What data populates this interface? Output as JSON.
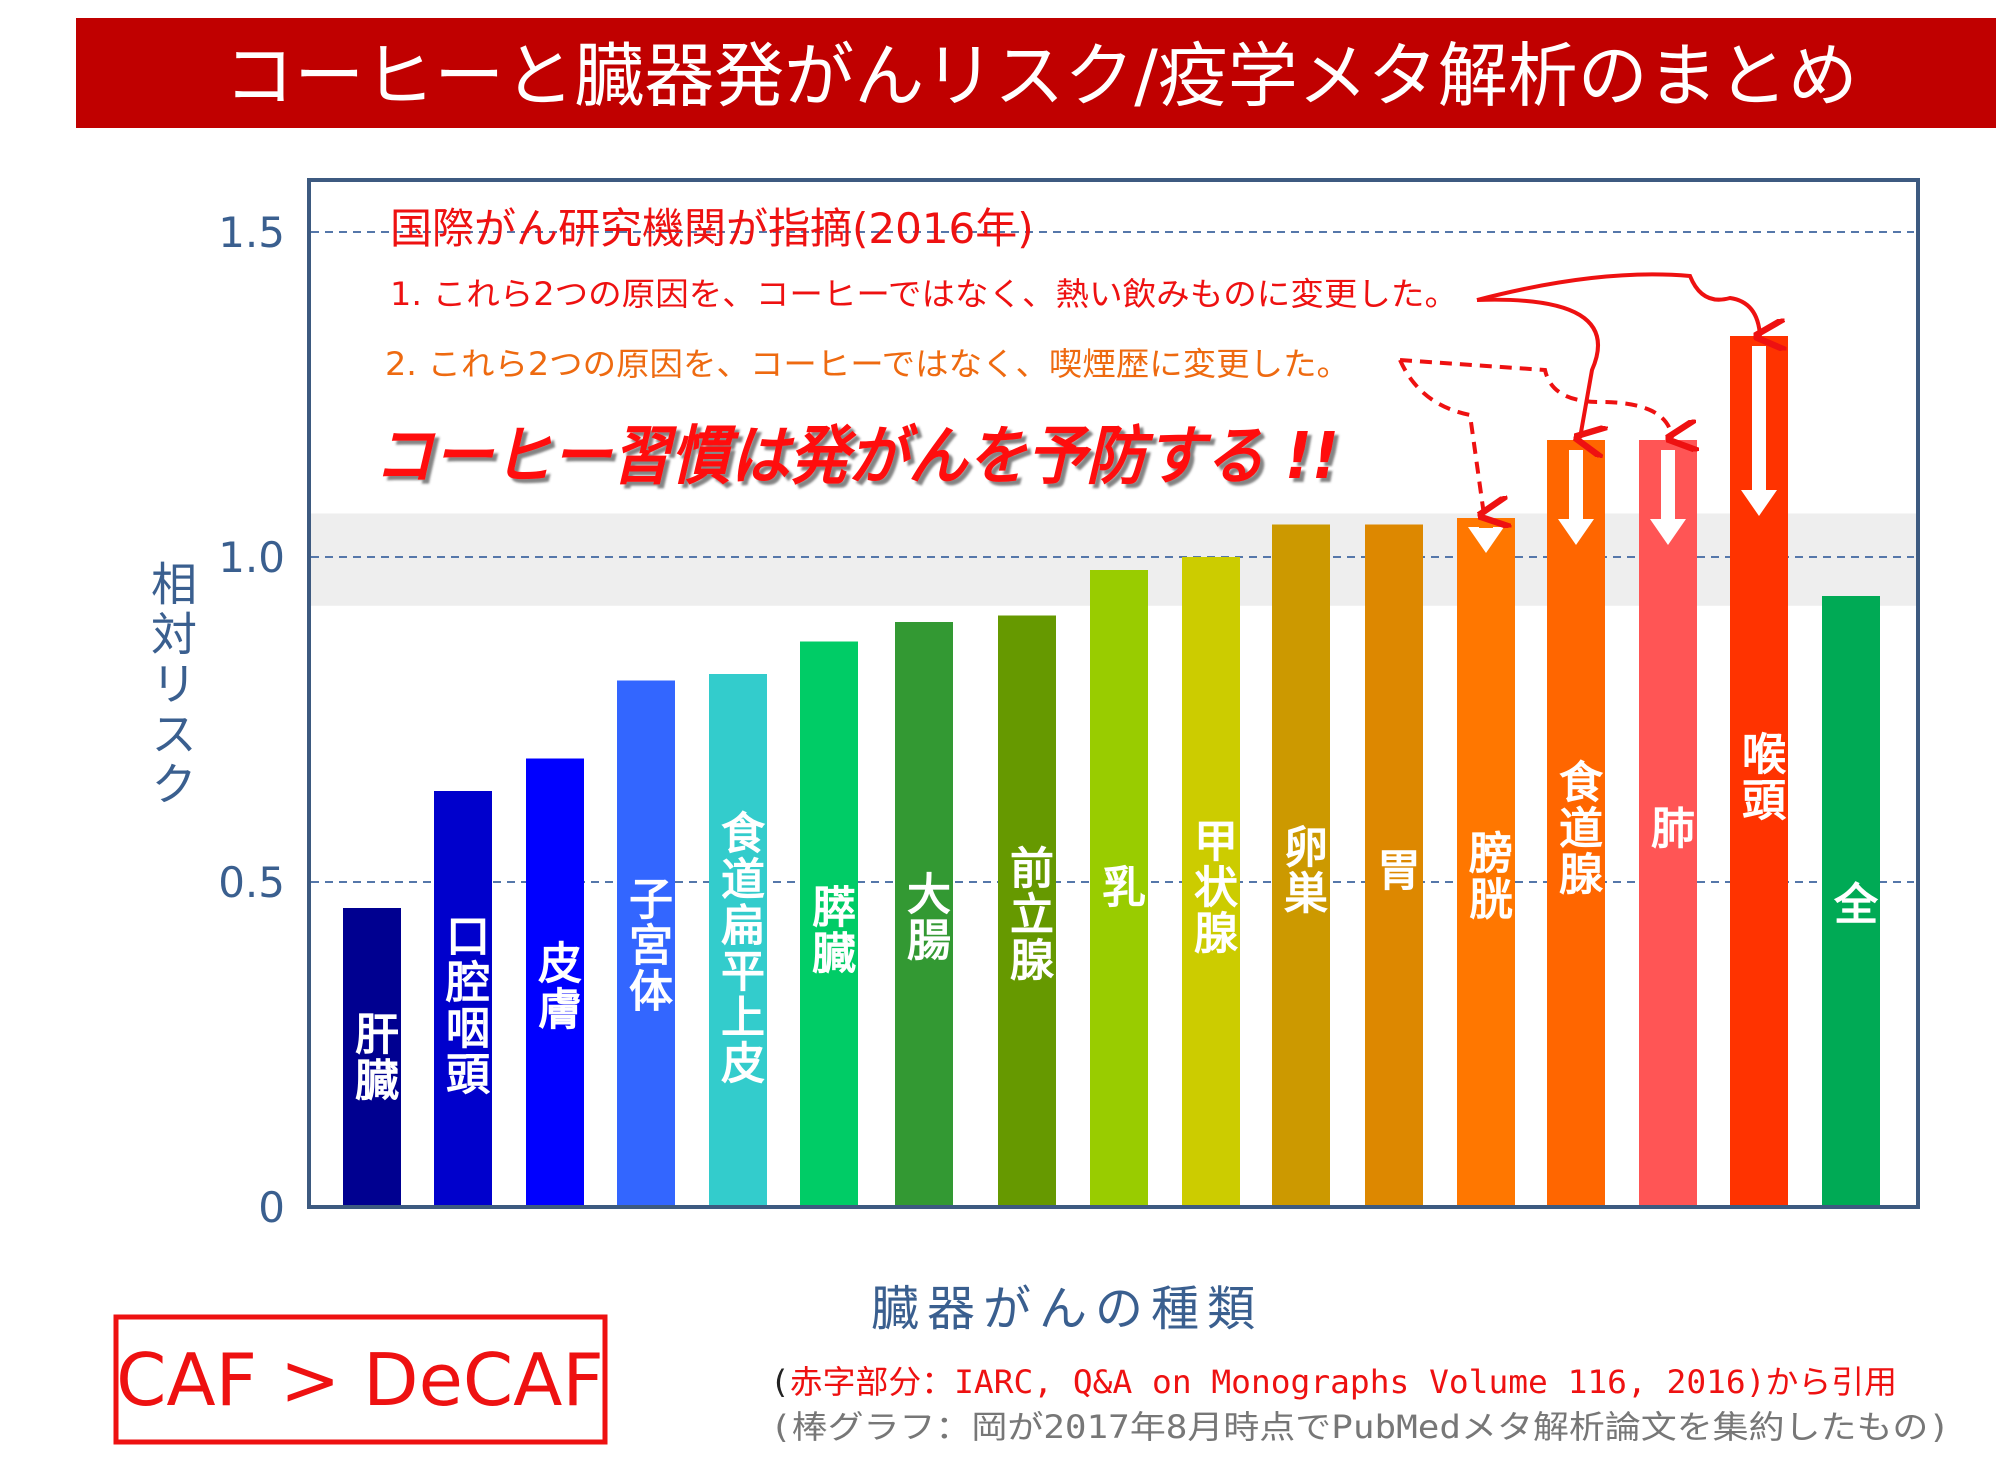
{
  "title": "コーヒーと臓器発がんリスク/疫学メタ解析のまとめ",
  "annotations": {
    "header": "国際がん研究機関が指摘(2016年)",
    "note1": "1. これら2つの原因を、コーヒーではなく、熱い飲みものに変更した。",
    "note2": "2. これら2つの原因を、コーヒーではなく、喫煙歴に変更した。",
    "headline": "コーヒー習慣は発がんを予防する !!"
  },
  "caf_box": "CAF > DeCAF",
  "citation": {
    "line1_open": "(",
    "line1_red": "赤字部分：IARC, Q&A on Monographs Volume 116, 2016)から引用",
    "line2": "(棒グラフ：岡が2017年8月時点でPubMedメタ解析論文を集約したもの)"
  },
  "colors": {
    "title_bg": "#c00000",
    "axis": "#3a5f8f",
    "annotation_red": "#ee1111",
    "annotation_orange": "#ee6a10",
    "band": "#eeeeee"
  },
  "chart_data": {
    "type": "bar",
    "xlabel": "臓器がんの種類",
    "ylabel": "相対リスク",
    "ylim": [
      0,
      1.58
    ],
    "yticks": [
      "0",
      "0.5",
      "1.0",
      "1.5"
    ],
    "ytick_values": [
      0,
      0.5,
      1.0,
      1.5
    ],
    "grid": "dashed at 0.5, 1.0, 1.5",
    "shaded_band": [
      0.925,
      1.067
    ],
    "categories": [
      "肝臓",
      "口腔咽頭",
      "皮膚",
      "子宮体",
      "食道扁平上皮",
      "膵臓",
      "大腸",
      "前立腺",
      "乳",
      "甲状腺",
      "卵巣",
      "胃",
      "膀胱",
      "食道腺",
      "肺",
      "喉頭",
      "全"
    ],
    "values": [
      0.46,
      0.64,
      0.69,
      0.81,
      0.82,
      0.87,
      0.9,
      0.91,
      0.98,
      1.0,
      1.05,
      1.05,
      1.06,
      1.18,
      1.18,
      1.34,
      0.94
    ],
    "bar_colors": [
      "#000090",
      "#0000cc",
      "#0000ff",
      "#3366ff",
      "#33cccc",
      "#00cc66",
      "#339933",
      "#669900",
      "#99cc00",
      "#cccc00",
      "#cc9900",
      "#dd8800",
      "#ff7700",
      "#ff6600",
      "#ff5555",
      "#ff3300",
      "#00aa55"
    ],
    "down_arrow_on": [
      "膀胱",
      "食道腺",
      "肺",
      "喉頭"
    ]
  }
}
